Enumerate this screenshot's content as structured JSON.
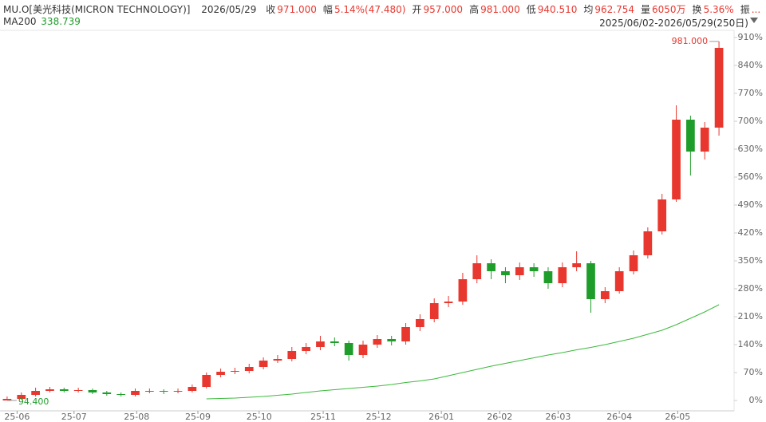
{
  "header": {
    "symbol": "MU.O[美光科技(MICRON TECHNOLOGY)]",
    "date": "2026/05/29",
    "fields": [
      {
        "label": "收",
        "value": "971.000"
      },
      {
        "label": "幅",
        "value": "5.14%(47.480)"
      },
      {
        "label": "开",
        "value": "957.000"
      },
      {
        "label": "高",
        "value": "981.000"
      },
      {
        "label": "低",
        "value": "940.510"
      },
      {
        "label": "均",
        "value": "962.754"
      },
      {
        "label": "量",
        "value": "6050万"
      },
      {
        "label": "换",
        "value": "5.36%"
      },
      {
        "label": "振",
        "value": "..."
      }
    ],
    "ma_label": "MA200",
    "ma_value": "338.739",
    "range": "2025/06/02-2026/05/29(250日)"
  },
  "chart_data": {
    "type": "candlestick",
    "open": [
      0,
      4,
      14,
      24,
      28,
      24,
      26,
      20,
      16,
      14,
      24,
      24,
      22,
      24,
      34,
      64,
      72,
      74,
      84,
      100,
      104,
      124,
      134,
      148,
      144,
      114,
      140,
      154,
      148,
      184,
      204,
      244,
      248,
      304,
      344,
      324,
      314,
      334,
      324,
      294,
      334,
      344,
      254,
      274,
      324,
      364,
      424,
      504,
      704,
      624,
      684
    ],
    "high": [
      10,
      20,
      32,
      34,
      32,
      32,
      30,
      24,
      20,
      30,
      30,
      28,
      30,
      40,
      70,
      80,
      82,
      92,
      108,
      114,
      134,
      144,
      162,
      158,
      150,
      150,
      164,
      162,
      194,
      216,
      256,
      262,
      320,
      364,
      354,
      334,
      346,
      344,
      334,
      346,
      374,
      350,
      284,
      334,
      376,
      434,
      518,
      740,
      714,
      698,
      900
    ],
    "low": [
      0,
      2,
      10,
      20,
      20,
      20,
      16,
      12,
      10,
      10,
      18,
      16,
      18,
      20,
      30,
      58,
      66,
      68,
      78,
      94,
      98,
      116,
      126,
      136,
      100,
      106,
      132,
      138,
      140,
      174,
      196,
      234,
      240,
      294,
      304,
      294,
      302,
      310,
      280,
      284,
      324,
      220,
      244,
      268,
      316,
      356,
      416,
      498,
      564,
      604,
      664
    ],
    "close": [
      4,
      14,
      24,
      28,
      24,
      26,
      20,
      16,
      14,
      24,
      24,
      22,
      24,
      34,
      64,
      72,
      74,
      84,
      100,
      104,
      124,
      134,
      148,
      144,
      114,
      140,
      154,
      148,
      184,
      204,
      244,
      248,
      304,
      344,
      324,
      314,
      334,
      324,
      294,
      334,
      344,
      254,
      274,
      324,
      364,
      424,
      504,
      704,
      624,
      684,
      884
    ],
    "up_color": "#e8372e",
    "down_color": "#1f9d2a",
    "series": [
      {
        "name": "MA200",
        "color": "#3cb93c",
        "values": [
          null,
          null,
          null,
          null,
          null,
          null,
          null,
          null,
          null,
          null,
          null,
          null,
          null,
          null,
          4,
          5,
          6,
          8,
          10,
          13,
          16,
          20,
          24,
          27,
          30,
          33,
          36,
          40,
          45,
          49,
          54,
          62,
          70,
          78,
          86,
          93,
          100,
          107,
          114,
          120,
          127,
          133,
          140,
          148,
          156,
          166,
          176,
          190,
          206,
          222,
          240
        ]
      }
    ],
    "max_label": "981.000",
    "min_label": "94.400",
    "xlim": [
      -0.5,
      50.5
    ],
    "xticks": [
      {
        "value": 0.7,
        "label": "25-06"
      },
      {
        "value": 4.7,
        "label": "25-07"
      },
      {
        "value": 9.1,
        "label": "25-08"
      },
      {
        "value": 13.4,
        "label": "25-09"
      },
      {
        "value": 17.7,
        "label": "25-10"
      },
      {
        "value": 22.2,
        "label": "25-11"
      },
      {
        "value": 26.1,
        "label": "25-12"
      },
      {
        "value": 30.5,
        "label": "26-01"
      },
      {
        "value": 34.6,
        "label": "26-02"
      },
      {
        "value": 38.7,
        "label": "26-03"
      },
      {
        "value": 43,
        "label": "26-04"
      },
      {
        "value": 47.1,
        "label": "26-05"
      }
    ],
    "ylim": [
      -26,
      924
    ],
    "yticks": [
      {
        "value": 0,
        "label": "0%"
      },
      {
        "value": 70,
        "label": "70%"
      },
      {
        "value": 140,
        "label": "140%"
      },
      {
        "value": 210,
        "label": "210%"
      },
      {
        "value": 280,
        "label": "280%"
      },
      {
        "value": 350,
        "label": "350%"
      },
      {
        "value": 420,
        "label": "420%"
      },
      {
        "value": 490,
        "label": "490%"
      },
      {
        "value": 560,
        "label": "560%"
      },
      {
        "value": 630,
        "label": "630%"
      },
      {
        "value": 700,
        "label": "700%"
      },
      {
        "value": 770,
        "label": "770%"
      },
      {
        "value": 840,
        "label": "840%"
      },
      {
        "value": 910,
        "label": "910%"
      }
    ]
  }
}
